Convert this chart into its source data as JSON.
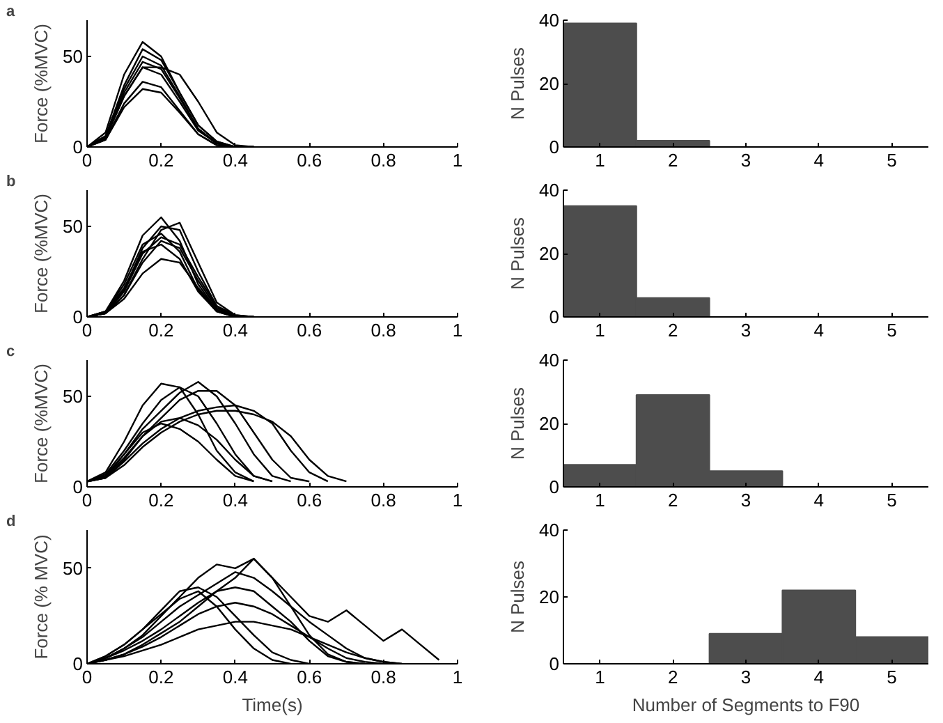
{
  "chart_data": [
    {
      "type": "line",
      "annotations": [
        "a"
      ],
      "ylabel": "Force (%MVC)",
      "xlim": [
        0,
        1
      ],
      "ylim": [
        0,
        70
      ],
      "xticks": [
        0,
        0.2,
        0.4,
        0.6,
        0.8,
        1
      ],
      "yticks": [
        0,
        50
      ],
      "grid": false,
      "x": [
        0,
        0.05,
        0.1,
        0.15,
        0.2,
        0.25,
        0.3,
        0.35,
        0.4,
        0.45
      ],
      "series": [
        {
          "color": "#000000",
          "values": [
            0,
            8,
            40,
            58,
            50,
            30,
            12,
            3,
            0,
            0
          ]
        },
        {
          "color": "#000000",
          "values": [
            0,
            6,
            32,
            50,
            45,
            28,
            10,
            2,
            0,
            0
          ]
        },
        {
          "color": "#000000",
          "values": [
            0,
            5,
            28,
            44,
            40,
            25,
            9,
            2,
            0,
            0
          ]
        },
        {
          "color": "#000000",
          "values": [
            0,
            4,
            24,
            36,
            33,
            20,
            7,
            1,
            0,
            0
          ]
        },
        {
          "color": "#000000",
          "values": [
            0,
            4,
            22,
            32,
            30,
            19,
            7,
            1,
            0,
            0
          ]
        },
        {
          "color": "#000000",
          "values": [
            0,
            5,
            28,
            44,
            44,
            40,
            25,
            8,
            1,
            0
          ]
        },
        {
          "color": "#000000",
          "values": [
            0,
            6,
            34,
            54,
            48,
            30,
            12,
            3,
            0,
            0
          ]
        },
        {
          "color": "#000000",
          "values": [
            0,
            5,
            30,
            47,
            43,
            27,
            10,
            2,
            0,
            0
          ]
        }
      ]
    },
    {
      "type": "histogram",
      "ylabel": "N Pulses",
      "bins": [
        0.5,
        1.5,
        2.5,
        3.5,
        4.5,
        5.5
      ],
      "values": [
        39,
        2,
        0,
        0,
        0
      ],
      "color": "#4d4d4d",
      "xlim": [
        0.5,
        5.5
      ],
      "xticks": [
        1,
        2,
        3,
        4,
        5
      ],
      "ylim": [
        0,
        40
      ],
      "yticks": [
        0,
        20,
        40
      ],
      "grid": false
    },
    {
      "type": "line",
      "annotations": [
        "b"
      ],
      "ylabel": "Force (%MVC)",
      "xlim": [
        0,
        1
      ],
      "ylim": [
        0,
        70
      ],
      "xticks": [
        0,
        0.2,
        0.4,
        0.6,
        0.8,
        1
      ],
      "yticks": [
        0,
        50
      ],
      "grid": false,
      "x": [
        0,
        0.05,
        0.1,
        0.15,
        0.2,
        0.25,
        0.3,
        0.35,
        0.4,
        0.45
      ],
      "series": [
        {
          "color": "#000000",
          "values": [
            0,
            3,
            20,
            45,
            55,
            42,
            18,
            4,
            0,
            0
          ]
        },
        {
          "color": "#000000",
          "values": [
            0,
            2,
            15,
            38,
            50,
            48,
            25,
            6,
            0,
            0
          ]
        },
        {
          "color": "#000000",
          "values": [
            0,
            2,
            12,
            30,
            42,
            38,
            20,
            5,
            0,
            0
          ]
        },
        {
          "color": "#000000",
          "values": [
            0,
            2,
            10,
            24,
            32,
            30,
            16,
            4,
            0,
            0
          ]
        },
        {
          "color": "#000000",
          "values": [
            0,
            3,
            18,
            40,
            46,
            36,
            15,
            3,
            0,
            0
          ]
        },
        {
          "color": "#000000",
          "values": [
            0,
            2,
            12,
            32,
            48,
            52,
            30,
            8,
            1,
            0
          ]
        },
        {
          "color": "#000000",
          "values": [
            0,
            2,
            14,
            35,
            44,
            40,
            22,
            6,
            1,
            0
          ]
        },
        {
          "color": "#000000",
          "values": [
            0,
            3,
            16,
            36,
            40,
            32,
            14,
            3,
            0,
            0
          ]
        }
      ]
    },
    {
      "type": "histogram",
      "ylabel": "N Pulses",
      "bins": [
        0.5,
        1.5,
        2.5,
        3.5,
        4.5,
        5.5
      ],
      "values": [
        35,
        6,
        0,
        0,
        0
      ],
      "color": "#4d4d4d",
      "xlim": [
        0.5,
        5.5
      ],
      "xticks": [
        1,
        2,
        3,
        4,
        5
      ],
      "ylim": [
        0,
        40
      ],
      "yticks": [
        0,
        20,
        40
      ],
      "grid": false
    },
    {
      "type": "line",
      "annotations": [
        "c"
      ],
      "ylabel": "Force (%MVC)",
      "xlim": [
        0,
        1
      ],
      "ylim": [
        0,
        70
      ],
      "xticks": [
        0,
        0.2,
        0.4,
        0.6,
        0.8,
        1
      ],
      "yticks": [
        0,
        50
      ],
      "grid": false,
      "x": [
        0,
        0.05,
        0.1,
        0.15,
        0.2,
        0.25,
        0.3,
        0.35,
        0.4,
        0.45,
        0.5,
        0.55,
        0.6,
        0.65,
        0.7
      ],
      "series": [
        {
          "color": "#000000",
          "values": [
            3,
            8,
            25,
            45,
            57,
            55,
            40,
            20,
            8,
            3,
            null,
            null,
            null,
            null,
            null
          ]
        },
        {
          "color": "#000000",
          "values": [
            3,
            6,
            18,
            30,
            35,
            32,
            25,
            15,
            6,
            3,
            null,
            null,
            null,
            null,
            null
          ]
        },
        {
          "color": "#000000",
          "values": [
            3,
            6,
            18,
            32,
            42,
            52,
            58,
            50,
            35,
            18,
            6,
            3,
            null,
            null,
            null
          ]
        },
        {
          "color": "#000000",
          "values": [
            3,
            5,
            15,
            28,
            38,
            48,
            53,
            53,
            45,
            30,
            15,
            5,
            3,
            null,
            null
          ]
        },
        {
          "color": "#000000",
          "values": [
            3,
            5,
            14,
            24,
            32,
            38,
            42,
            44,
            45,
            42,
            35,
            20,
            8,
            3,
            null
          ]
        },
        {
          "color": "#000000",
          "values": [
            3,
            5,
            12,
            22,
            30,
            36,
            40,
            42,
            42,
            40,
            36,
            28,
            15,
            6,
            3
          ]
        },
        {
          "color": "#000000",
          "values": [
            3,
            7,
            20,
            35,
            48,
            55,
            50,
            35,
            18,
            6,
            3,
            null,
            null,
            null,
            null
          ]
        },
        {
          "color": "#000000",
          "values": [
            3,
            6,
            16,
            28,
            36,
            38,
            34,
            26,
            15,
            6,
            3,
            null,
            null,
            null,
            null
          ]
        }
      ]
    },
    {
      "type": "histogram",
      "ylabel": "N Pulses",
      "bins": [
        0.5,
        1.5,
        2.5,
        3.5,
        4.5,
        5.5
      ],
      "values": [
        7,
        29,
        5,
        0,
        0
      ],
      "color": "#4d4d4d",
      "xlim": [
        0.5,
        5.5
      ],
      "xticks": [
        1,
        2,
        3,
        4,
        5
      ],
      "ylim": [
        0,
        40
      ],
      "yticks": [
        0,
        20,
        40
      ],
      "grid": false
    },
    {
      "type": "line",
      "annotations": [
        "d"
      ],
      "xlabel": "Time(s)",
      "ylabel": "Force (% MVC)",
      "xlim": [
        0,
        1
      ],
      "ylim": [
        0,
        70
      ],
      "xticks": [
        0,
        0.2,
        0.4,
        0.6,
        0.8,
        1
      ],
      "yticks": [
        0,
        50
      ],
      "grid": false,
      "x": [
        0,
        0.05,
        0.1,
        0.15,
        0.2,
        0.25,
        0.3,
        0.35,
        0.4,
        0.45,
        0.5,
        0.55,
        0.6,
        0.65,
        0.7,
        0.75,
        0.8,
        0.85,
        0.9,
        0.95
      ],
      "series": [
        {
          "color": "#000000",
          "values": [
            0,
            3,
            8,
            15,
            25,
            35,
            45,
            52,
            50,
            55,
            45,
            30,
            15,
            5,
            1,
            0,
            null,
            null,
            null,
            null
          ]
        },
        {
          "color": "#000000",
          "values": [
            0,
            4,
            10,
            18,
            28,
            38,
            40,
            35,
            25,
            15,
            6,
            2,
            0,
            null,
            null,
            null,
            null,
            null,
            null,
            null
          ]
        },
        {
          "color": "#000000",
          "values": [
            0,
            2,
            5,
            10,
            16,
            22,
            30,
            38,
            45,
            55,
            45,
            35,
            25,
            22,
            28,
            20,
            12,
            18,
            10,
            2
          ]
        },
        {
          "color": "#000000",
          "values": [
            0,
            3,
            7,
            12,
            18,
            25,
            32,
            38,
            40,
            38,
            30,
            22,
            12,
            4,
            1,
            0,
            null,
            null,
            null,
            null
          ]
        },
        {
          "color": "#000000",
          "values": [
            0,
            2,
            4,
            7,
            10,
            14,
            18,
            20,
            22,
            22,
            20,
            18,
            14,
            8,
            3,
            1,
            0,
            null,
            null,
            null
          ]
        },
        {
          "color": "#000000",
          "values": [
            0,
            3,
            8,
            14,
            22,
            30,
            36,
            42,
            48,
            45,
            38,
            30,
            22,
            15,
            8,
            3,
            1,
            0,
            null,
            null
          ]
        },
        {
          "color": "#000000",
          "values": [
            0,
            2,
            5,
            9,
            14,
            20,
            26,
            30,
            32,
            30,
            26,
            20,
            14,
            10,
            6,
            3,
            1,
            0,
            null,
            null
          ]
        },
        {
          "color": "#000000",
          "values": [
            0,
            4,
            10,
            18,
            26,
            34,
            38,
            30,
            18,
            8,
            2,
            0,
            null,
            null,
            null,
            null,
            null,
            null,
            null,
            null
          ]
        }
      ]
    },
    {
      "type": "histogram",
      "xlabel": "Number of Segments to F90",
      "ylabel": "N Pulses",
      "bins": [
        0.5,
        1.5,
        2.5,
        3.5,
        4.5,
        5.5
      ],
      "values": [
        0,
        0,
        9,
        22,
        8
      ],
      "color": "#4d4d4d",
      "xlim": [
        0.5,
        5.5
      ],
      "xticks": [
        1,
        2,
        3,
        4,
        5
      ],
      "ylim": [
        0,
        40
      ],
      "yticks": [
        0,
        20,
        40
      ],
      "grid": false
    }
  ]
}
